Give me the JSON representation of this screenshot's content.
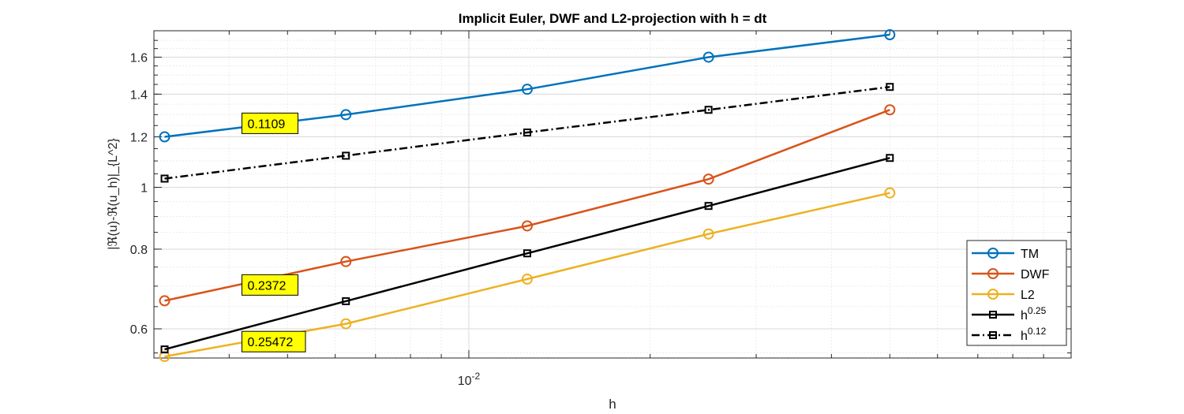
{
  "chart_data": {
    "type": "line",
    "title": "Implicit Euler, DWF and L2-projection with h = dt",
    "xlabel": "h",
    "ylabel": "|ℜ(u)-ℜ(u_h)|_{L^2}",
    "xscale": "log",
    "yscale": "log",
    "xlim": [
      0.003,
      0.1
    ],
    "ylim": [
      0.54,
      1.76
    ],
    "x": [
      0.003125,
      0.00625,
      0.0125,
      0.025,
      0.05
    ],
    "x_tick_labels": [
      {
        "value": 0.01,
        "base": "10",
        "exp": "-2"
      }
    ],
    "y_ticks": [
      0.6,
      0.8,
      1,
      1.2,
      1.4,
      1.6
    ],
    "y_tick_labels": [
      "0.6",
      "0.8",
      "1",
      "1.2",
      "1.4",
      "1.6"
    ],
    "grid": true,
    "minor_grid": true,
    "legend_position": "bottom-right",
    "series": [
      {
        "name": "TM",
        "base": "TM",
        "sup": "",
        "color": "#0072BD",
        "marker": "circle",
        "dashed": false,
        "values": [
          1.2,
          1.3,
          1.425,
          1.6,
          1.735
        ]
      },
      {
        "name": "DWF",
        "base": "DWF",
        "sup": "",
        "color": "#D95319",
        "marker": "circle",
        "dashed": false,
        "values": [
          0.664,
          0.765,
          0.87,
          1.03,
          1.323
        ]
      },
      {
        "name": "L2",
        "base": "L2",
        "sup": "",
        "color": "#EDB120",
        "marker": "circle",
        "dashed": false,
        "values": [
          0.543,
          0.611,
          0.718,
          0.845,
          0.98
        ]
      },
      {
        "name": "h^0.25",
        "base": "h",
        "sup": "0.25",
        "color": "#000000",
        "marker": "square",
        "dashed": false,
        "values": [
          0.557,
          0.663,
          0.788,
          0.935,
          1.112
        ]
      },
      {
        "name": "h^0.12",
        "base": "h",
        "sup": "0.12",
        "color": "#000000",
        "marker": "square",
        "dashed": true,
        "values": [
          1.032,
          1.121,
          1.219,
          1.323,
          1.437
        ]
      }
    ],
    "annotations": [
      {
        "text": "0.1109",
        "x": 0.0042,
        "y": 1.26
      },
      {
        "text": "0.2372",
        "x": 0.0042,
        "y": 0.703
      },
      {
        "text": "0.25472",
        "x": 0.0042,
        "y": 0.573
      }
    ]
  }
}
